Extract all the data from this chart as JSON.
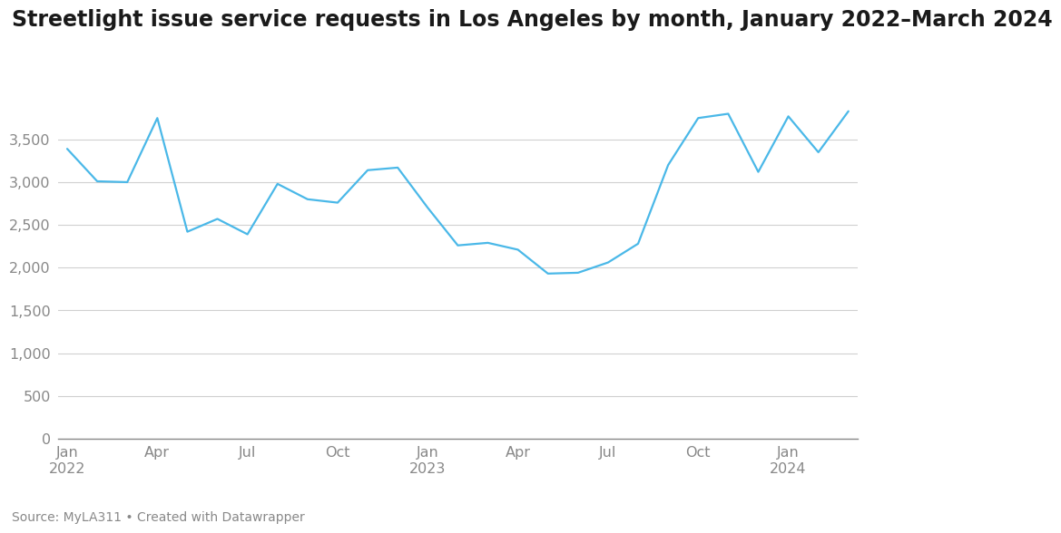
{
  "title": "Streetlight issue service requests in Los Angeles by month, January 2022–March 2024",
  "source_text": "Source: MyLA311 • Created with Datawrapper",
  "line_color": "#4ab8e8",
  "background_color": "#ffffff",
  "values": [
    3390,
    3010,
    3000,
    3750,
    2420,
    2570,
    2390,
    2980,
    2800,
    2760,
    3140,
    3170,
    2700,
    2260,
    2290,
    2210,
    1930,
    1940,
    2060,
    2280,
    3200,
    3750,
    3800,
    3120,
    3770,
    3350,
    3830
  ],
  "tick_labels": [
    "Jan\n2022",
    "Apr",
    "Jul",
    "Oct",
    "Jan\n2023",
    "Apr",
    "Jul",
    "Oct",
    "Jan\n2024"
  ],
  "tick_positions": [
    0,
    3,
    6,
    9,
    12,
    15,
    18,
    21,
    24
  ],
  "ylim": [
    0,
    4200
  ],
  "yticks": [
    0,
    500,
    1000,
    1500,
    2000,
    2500,
    3000,
    3500
  ],
  "line_width": 1.6,
  "title_fontsize": 17,
  "tick_fontsize": 11.5,
  "source_fontsize": 10,
  "grid_color": "#d0d0d0",
  "spine_color": "#888888",
  "tick_color": "#888888",
  "title_color": "#1a1a1a",
  "source_color": "#888888"
}
